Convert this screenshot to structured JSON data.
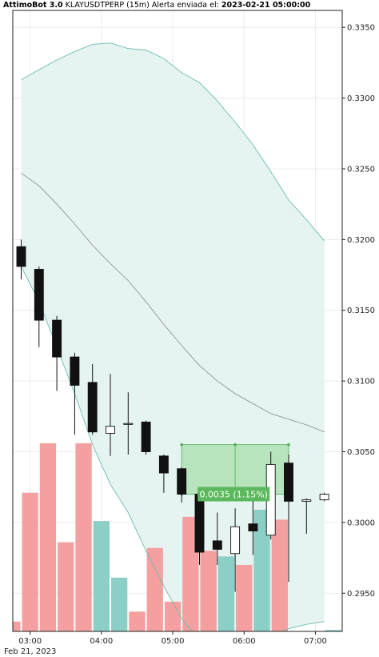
{
  "title": {
    "app": "AttimoBot 3.0",
    "symbol": "KLAYUSDTPERP (15m)",
    "alert_label": "Alerta enviada el:",
    "alert_time": "2023-02-21 05:00:00"
  },
  "chart_data": {
    "type": "candlestick",
    "title": "AttimoBot 3.0 KLAYUSDTPERP (15m) Alerta enviada el: 2023-02-21 05:00:00",
    "xlabel": "",
    "ylabel": "",
    "ylim": [
      0.2923,
      0.3362
    ],
    "yticks": [
      "0.2950",
      "0.3000",
      "0.3050",
      "0.3100",
      "0.3150",
      "0.3200",
      "0.3250",
      "0.3300",
      "0.3350"
    ],
    "xticks": [
      {
        "t": 0.5,
        "label": "03:00",
        "sublabel": "Feb 21, 2023"
      },
      {
        "t": 4.5,
        "label": "04:00"
      },
      {
        "t": 8.5,
        "label": "05:00"
      },
      {
        "t": 12.5,
        "label": "06:00"
      },
      {
        "t": 16.5,
        "label": "07:00"
      }
    ],
    "grid": true,
    "colors": {
      "up_candle": "#ffffff",
      "down_candle": "#111111",
      "sell_volume": "#f4a0a0",
      "buy_volume": "#8ccfc7",
      "band_fill": "#e6f4f1",
      "band_line": "#6cbcb2",
      "mid_line": "#888888",
      "gain_box": "#7fd07f",
      "gain_label_bg": "#5cb85c"
    },
    "candles": [
      {
        "time": "02:45",
        "open": 0.3195,
        "high": 0.32,
        "low": 0.3172,
        "close": 0.3181
      },
      {
        "time": "03:00",
        "open": 0.3179,
        "high": 0.3181,
        "low": 0.3124,
        "close": 0.3143
      },
      {
        "time": "03:15",
        "open": 0.3143,
        "high": 0.3146,
        "low": 0.3093,
        "close": 0.3117
      },
      {
        "time": "03:30",
        "open": 0.3117,
        "high": 0.312,
        "low": 0.3062,
        "close": 0.3097
      },
      {
        "time": "03:45",
        "open": 0.3099,
        "high": 0.3112,
        "low": 0.3062,
        "close": 0.3064
      },
      {
        "time": "04:00",
        "open": 0.3063,
        "high": 0.3105,
        "low": 0.3047,
        "close": 0.3068
      },
      {
        "time": "04:15",
        "open": 0.307,
        "high": 0.3092,
        "low": 0.3048,
        "close": 0.307
      },
      {
        "time": "04:30",
        "open": 0.3071,
        "high": 0.3072,
        "low": 0.3048,
        "close": 0.305
      },
      {
        "time": "04:45",
        "open": 0.3047,
        "high": 0.3048,
        "low": 0.3021,
        "close": 0.3035
      },
      {
        "time": "05:00",
        "open": 0.3038,
        "high": 0.3039,
        "low": 0.3014,
        "close": 0.302
      },
      {
        "time": "05:15",
        "open": 0.302,
        "high": 0.3022,
        "low": 0.297,
        "close": 0.2979
      },
      {
        "time": "05:30",
        "open": 0.2987,
        "high": 0.3007,
        "low": 0.297,
        "close": 0.2981
      },
      {
        "time": "05:45",
        "open": 0.2978,
        "high": 0.301,
        "low": 0.2951,
        "close": 0.2997
      },
      {
        "time": "06:00",
        "open": 0.2999,
        "high": 0.3015,
        "low": 0.2977,
        "close": 0.2994
      },
      {
        "time": "06:15",
        "open": 0.2991,
        "high": 0.305,
        "low": 0.2988,
        "close": 0.3041
      },
      {
        "time": "06:30",
        "open": 0.3042,
        "high": 0.3048,
        "low": 0.2958,
        "close": 0.3015
      },
      {
        "time": "06:45",
        "open": 0.3015,
        "high": 0.3017,
        "low": 0.2992,
        "close": 0.3016
      },
      {
        "time": "07:00",
        "open": 0.3016,
        "high": 0.3021,
        "low": 0.3015,
        "close": 0.302
      }
    ],
    "volume_bars": [
      {
        "t": -0.5,
        "top": 0.293,
        "side": "sell"
      },
      {
        "t": 0.5,
        "top": 0.3021,
        "side": "sell"
      },
      {
        "t": 1.5,
        "top": 0.3056,
        "side": "sell"
      },
      {
        "t": 2.5,
        "top": 0.2986,
        "side": "sell"
      },
      {
        "t": 3.5,
        "top": 0.3056,
        "side": "sell"
      },
      {
        "t": 4.5,
        "top": 0.3001,
        "side": "buy"
      },
      {
        "t": 5.5,
        "top": 0.2961,
        "side": "buy"
      },
      {
        "t": 6.5,
        "top": 0.2937,
        "side": "sell"
      },
      {
        "t": 7.5,
        "top": 0.2982,
        "side": "sell"
      },
      {
        "t": 8.5,
        "top": 0.2944,
        "side": "sell"
      },
      {
        "t": 9.5,
        "top": 0.3004,
        "side": "sell"
      },
      {
        "t": 10.5,
        "top": 0.298,
        "side": "sell"
      },
      {
        "t": 11.5,
        "top": 0.2976,
        "side": "buy"
      },
      {
        "t": 12.5,
        "top": 0.297,
        "side": "sell"
      },
      {
        "t": 13.5,
        "top": 0.3009,
        "side": "buy"
      },
      {
        "t": 14.5,
        "top": 0.3002,
        "side": "sell"
      },
      {
        "t": 17.5,
        "top": 0.2924,
        "side": "buy"
      }
    ],
    "bands": {
      "t": [
        0,
        1,
        2,
        3,
        4,
        5,
        6,
        7,
        8,
        9,
        10,
        11,
        12,
        13,
        14,
        15,
        16,
        17
      ],
      "upper": [
        0.3313,
        0.332,
        0.3327,
        0.3333,
        0.3338,
        0.3339,
        0.3335,
        0.3334,
        0.3328,
        0.3318,
        0.3311,
        0.3298,
        0.3283,
        0.3267,
        0.3248,
        0.3228,
        0.3214,
        0.3199
      ],
      "middle": [
        0.3247,
        0.3238,
        0.3225,
        0.3211,
        0.3196,
        0.3183,
        0.3171,
        0.3156,
        0.314,
        0.3125,
        0.3111,
        0.31,
        0.3091,
        0.3084,
        0.3077,
        0.3073,
        0.3069,
        0.3064
      ],
      "lower": [
        0.3181,
        0.3156,
        0.3124,
        0.3091,
        0.3055,
        0.3027,
        0.3007,
        0.298,
        0.2955,
        0.2932,
        0.2917,
        0.2912,
        0.2912,
        0.2915,
        0.292,
        0.2925,
        0.2928,
        0.293
      ]
    },
    "gain_box": {
      "t_start": 9,
      "t_end": 15,
      "low": 0.302,
      "high": 0.3055,
      "label": "0.0035 (1.15%)"
    }
  }
}
